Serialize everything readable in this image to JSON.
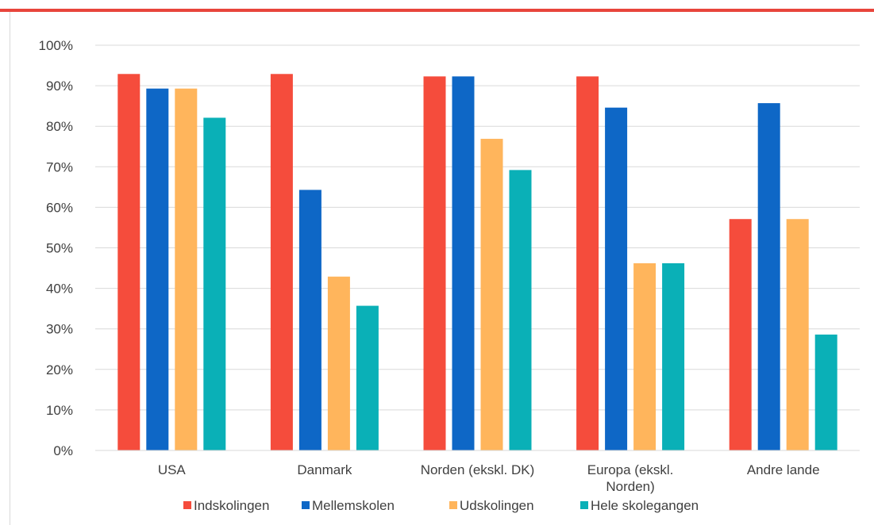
{
  "colors": {
    "accent_rule": "#e8453c",
    "gridline": "#d9d9d9",
    "text": "#404040"
  },
  "chart_data": {
    "type": "bar",
    "categories": [
      [
        "USA"
      ],
      [
        "Danmark"
      ],
      [
        "Norden (ekskl. DK)"
      ],
      [
        "Europa (ekskl.",
        "Norden)"
      ],
      [
        "Andre lande"
      ]
    ],
    "series": [
      {
        "name": "Indskolingen",
        "color": "#f54c3c",
        "values": [
          92.9,
          92.9,
          92.3,
          92.3,
          57.1
        ]
      },
      {
        "name": "Mellemskolen",
        "color": "#0e67c6",
        "values": [
          89.3,
          64.3,
          92.3,
          84.6,
          85.7
        ]
      },
      {
        "name": "Udskolingen",
        "color": "#ffb55c",
        "values": [
          89.3,
          42.9,
          76.9,
          46.2,
          57.1
        ]
      },
      {
        "name": "Hele skolegangen",
        "color": "#0ab0b7",
        "values": [
          82.1,
          35.7,
          69.2,
          46.2,
          28.6
        ]
      }
    ],
    "ylim": [
      0,
      100
    ],
    "yticks": [
      "0%",
      "10%",
      "20%",
      "30%",
      "40%",
      "50%",
      "60%",
      "70%",
      "80%",
      "90%",
      "100%"
    ],
    "title": "",
    "xlabel": "",
    "ylabel": "",
    "grid": true,
    "legend_position": "bottom"
  }
}
